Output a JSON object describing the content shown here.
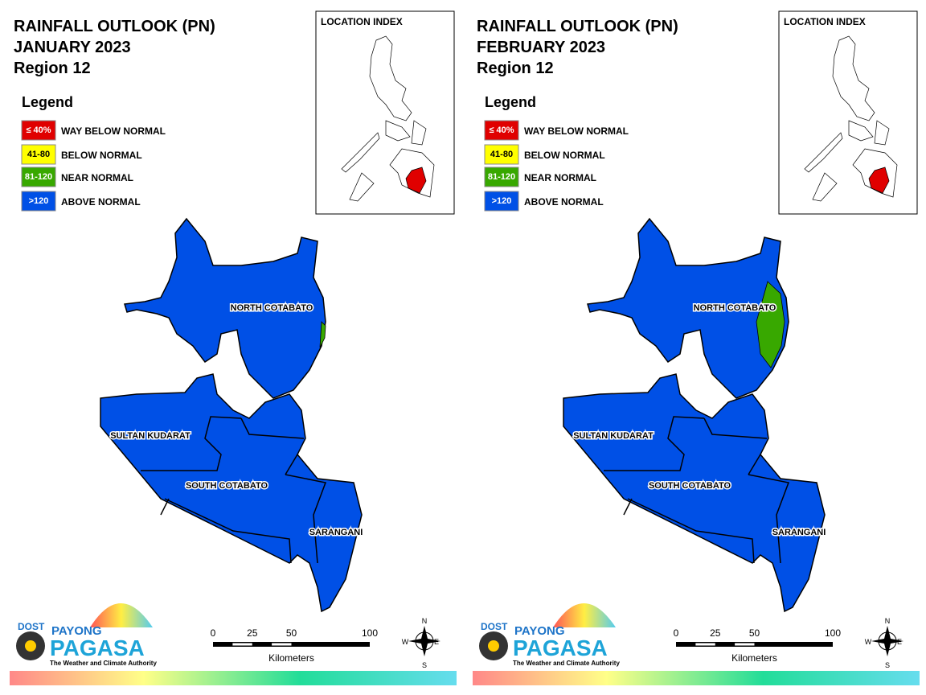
{
  "panels": [
    {
      "title": "RAINFALL OUTLOOK (PN)",
      "month": "JANUARY 2023",
      "region": "Region 12",
      "legend_title": "Legend",
      "legend": [
        {
          "swatch": "≤ 40%",
          "label": "WAY BELOW NORMAL",
          "color": "#e00000"
        },
        {
          "swatch": "41-80",
          "label": "BELOW NORMAL",
          "color": "#ffff00"
        },
        {
          "swatch": "81-120",
          "label": "NEAR NORMAL",
          "color": "#38a800"
        },
        {
          "swatch": ">120",
          "label": "ABOVE NORMAL",
          "color": "#0050e6"
        }
      ],
      "index_title": "LOCATION INDEX",
      "provinces": [
        "NORTH COTABATO",
        "SULTAN KUDARAT",
        "SOUTH COTABATO",
        "SARANGANI"
      ],
      "scale": {
        "ticks": [
          0,
          25,
          50,
          100
        ],
        "unit": "Kilometers"
      },
      "compass": [
        "N",
        "E",
        "S",
        "W"
      ],
      "logo": {
        "agency": "DOST",
        "brand1": "PAYONG",
        "brand2": "PAGASA",
        "tagline": "The Weather and Climate Authority"
      }
    },
    {
      "title": "RAINFALL OUTLOOK (PN)",
      "month": "FEBRUARY 2023",
      "region": "Region 12",
      "legend_title": "Legend",
      "legend": [
        {
          "swatch": "≤ 40%",
          "label": "WAY BELOW NORMAL",
          "color": "#e00000"
        },
        {
          "swatch": "41-80",
          "label": "BELOW NORMAL",
          "color": "#ffff00"
        },
        {
          "swatch": "81-120",
          "label": "NEAR NORMAL",
          "color": "#38a800"
        },
        {
          "swatch": ">120",
          "label": "ABOVE NORMAL",
          "color": "#0050e6"
        }
      ],
      "index_title": "LOCATION INDEX",
      "provinces": [
        "NORTH COTABATO",
        "SULTAN KUDARAT",
        "SOUTH COTABATO",
        "SARANGANI"
      ],
      "scale": {
        "ticks": [
          0,
          25,
          50,
          100
        ],
        "unit": "Kilometers"
      },
      "compass": [
        "N",
        "E",
        "S",
        "W"
      ],
      "logo": {
        "agency": "DOST",
        "brand1": "PAYONG",
        "brand2": "PAGASA",
        "tagline": "The Weather and Climate Authority"
      }
    }
  ]
}
